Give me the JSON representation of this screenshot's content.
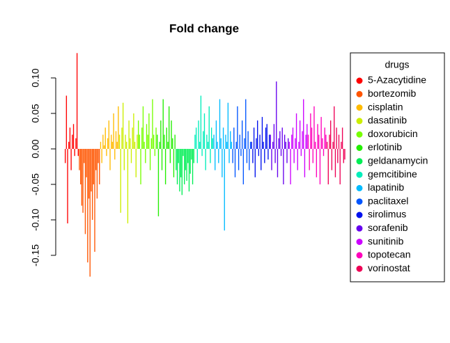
{
  "chart_data": {
    "type": "bar",
    "title": "Fold change",
    "legend_title": "drugs",
    "legend": "right",
    "ylim": [
      -0.18,
      0.135
    ],
    "yticks": [
      -0.15,
      {
        "value": -0.1,
        "label": "-0.10"
      },
      -0.05,
      {
        "value": 0,
        "label": "0.00"
      },
      0.05,
      {
        "value": 0.1,
        "label": "0.10"
      }
    ],
    "series": [
      {
        "name": "5-Azacytidine",
        "color": "#FF0000",
        "values": [
          -0.02,
          0.075,
          -0.105,
          0.01,
          0.03,
          -0.03,
          0.02,
          0.035,
          -0.01,
          0.015,
          0.135,
          -0.01
        ]
      },
      {
        "name": "bortezomib",
        "color": "#FF5500",
        "values": [
          -0.03,
          -0.05,
          -0.08,
          -0.09,
          -0.02,
          -0.12,
          -0.04,
          -0.16,
          -0.07,
          -0.18,
          -0.06,
          -0.1,
          -0.05,
          -0.145,
          -0.03,
          -0.07,
          -0.02,
          -0.05
        ]
      },
      {
        "name": "cisplatin",
        "color": "#FFBB00",
        "values": [
          0.01,
          -0.02,
          0.02,
          0.005,
          0.03,
          -0.01,
          0.015,
          0.04,
          -0.03,
          0.02,
          0.01,
          0.05,
          -0.015,
          0.025,
          0.01,
          0.06
        ]
      },
      {
        "name": "dasatinib",
        "color": "#CCEE00",
        "values": [
          0.02,
          -0.09,
          0.03,
          0.065,
          -0.03,
          0.02,
          0.01,
          -0.105,
          0.04,
          0.015,
          -0.02,
          0.03,
          0.05,
          0.01,
          -0.04,
          0.02
        ]
      },
      {
        "name": "doxorubicin",
        "color": "#77FF00",
        "values": [
          0.04,
          0.02,
          -0.05,
          0.03,
          0.06,
          0.01,
          -0.02,
          0.035,
          0.02,
          0.05,
          -0.03,
          0.015,
          0.07,
          0.02,
          -0.01,
          0.03
        ]
      },
      {
        "name": "erlotinib",
        "color": "#22EE00",
        "values": [
          0.02,
          -0.095,
          0.01,
          0.04,
          -0.03,
          0.07,
          0.02,
          -0.05,
          0.03,
          0.01,
          0.06,
          -0.02,
          0.04,
          0.015,
          -0.04,
          0.02
        ]
      },
      {
        "name": "geldanamycin",
        "color": "#00EE55",
        "values": [
          -0.03,
          -0.05,
          -0.02,
          -0.06,
          -0.04,
          -0.065,
          -0.01,
          -0.05,
          -0.03,
          -0.045,
          -0.02,
          -0.06,
          -0.035,
          -0.015,
          -0.05,
          -0.02
        ]
      },
      {
        "name": "gemcitibine",
        "color": "#00EEBB",
        "values": [
          0.02,
          0.03,
          -0.02,
          0.04,
          0.01,
          0.075,
          -0.01,
          0.025,
          0.05,
          -0.03,
          0.02,
          0.01,
          0.06,
          -0.02,
          0.03,
          0.015
        ]
      },
      {
        "name": "lapatinib",
        "color": "#00BBFF",
        "values": [
          0.02,
          -0.03,
          0.04,
          0.01,
          -0.02,
          0.07,
          0.015,
          -0.04,
          0.03,
          -0.115,
          0.02,
          0.01,
          0.065,
          -0.02,
          0.025,
          0.01
        ]
      },
      {
        "name": "paclitaxel",
        "color": "#0055FF",
        "values": [
          -0.02,
          0.03,
          -0.04,
          0.01,
          0.06,
          -0.03,
          0.02,
          -0.01,
          0.04,
          -0.05,
          0.015,
          0.07,
          -0.02,
          0.025,
          -0.03,
          0.01
        ]
      },
      {
        "name": "sirolimus",
        "color": "#0011EE",
        "values": [
          0.01,
          -0.02,
          0.03,
          -0.04,
          0.015,
          0.04,
          -0.01,
          0.02,
          -0.03,
          0.045,
          0.01,
          -0.02,
          0.03,
          0.035,
          -0.015,
          0.02
        ]
      },
      {
        "name": "sorafenib",
        "color": "#6600EE",
        "values": [
          0.02,
          -0.03,
          0.01,
          0.035,
          -0.02,
          0.095,
          -0.04,
          0.015,
          0.025,
          -0.01,
          0.03,
          -0.05,
          0.02,
          0.01,
          -0.02,
          0.015
        ]
      },
      {
        "name": "sunitinib",
        "color": "#CC00FF",
        "values": [
          0.01,
          -0.05,
          0.02,
          0.03,
          -0.02,
          0.015,
          0.05,
          -0.03,
          0.01,
          0.04,
          -0.01,
          0.025,
          0.07,
          -0.04,
          0.02,
          0.035
        ]
      },
      {
        "name": "topotecan",
        "color": "#FF00BB",
        "values": [
          0.02,
          -0.03,
          0.05,
          0.03,
          -0.02,
          0.06,
          0.01,
          -0.04,
          0.035,
          0.02,
          -0.05,
          0.045,
          0.015,
          -0.01,
          0.03,
          0.02
        ]
      },
      {
        "name": "vorinostat",
        "color": "#EE0055",
        "values": [
          0.01,
          -0.05,
          0.02,
          0.04,
          -0.03,
          0.01,
          0.06,
          -0.04,
          0.03,
          -0.02,
          0.02,
          -0.05,
          0.01,
          0.03,
          -0.02,
          -0.015
        ]
      }
    ]
  }
}
